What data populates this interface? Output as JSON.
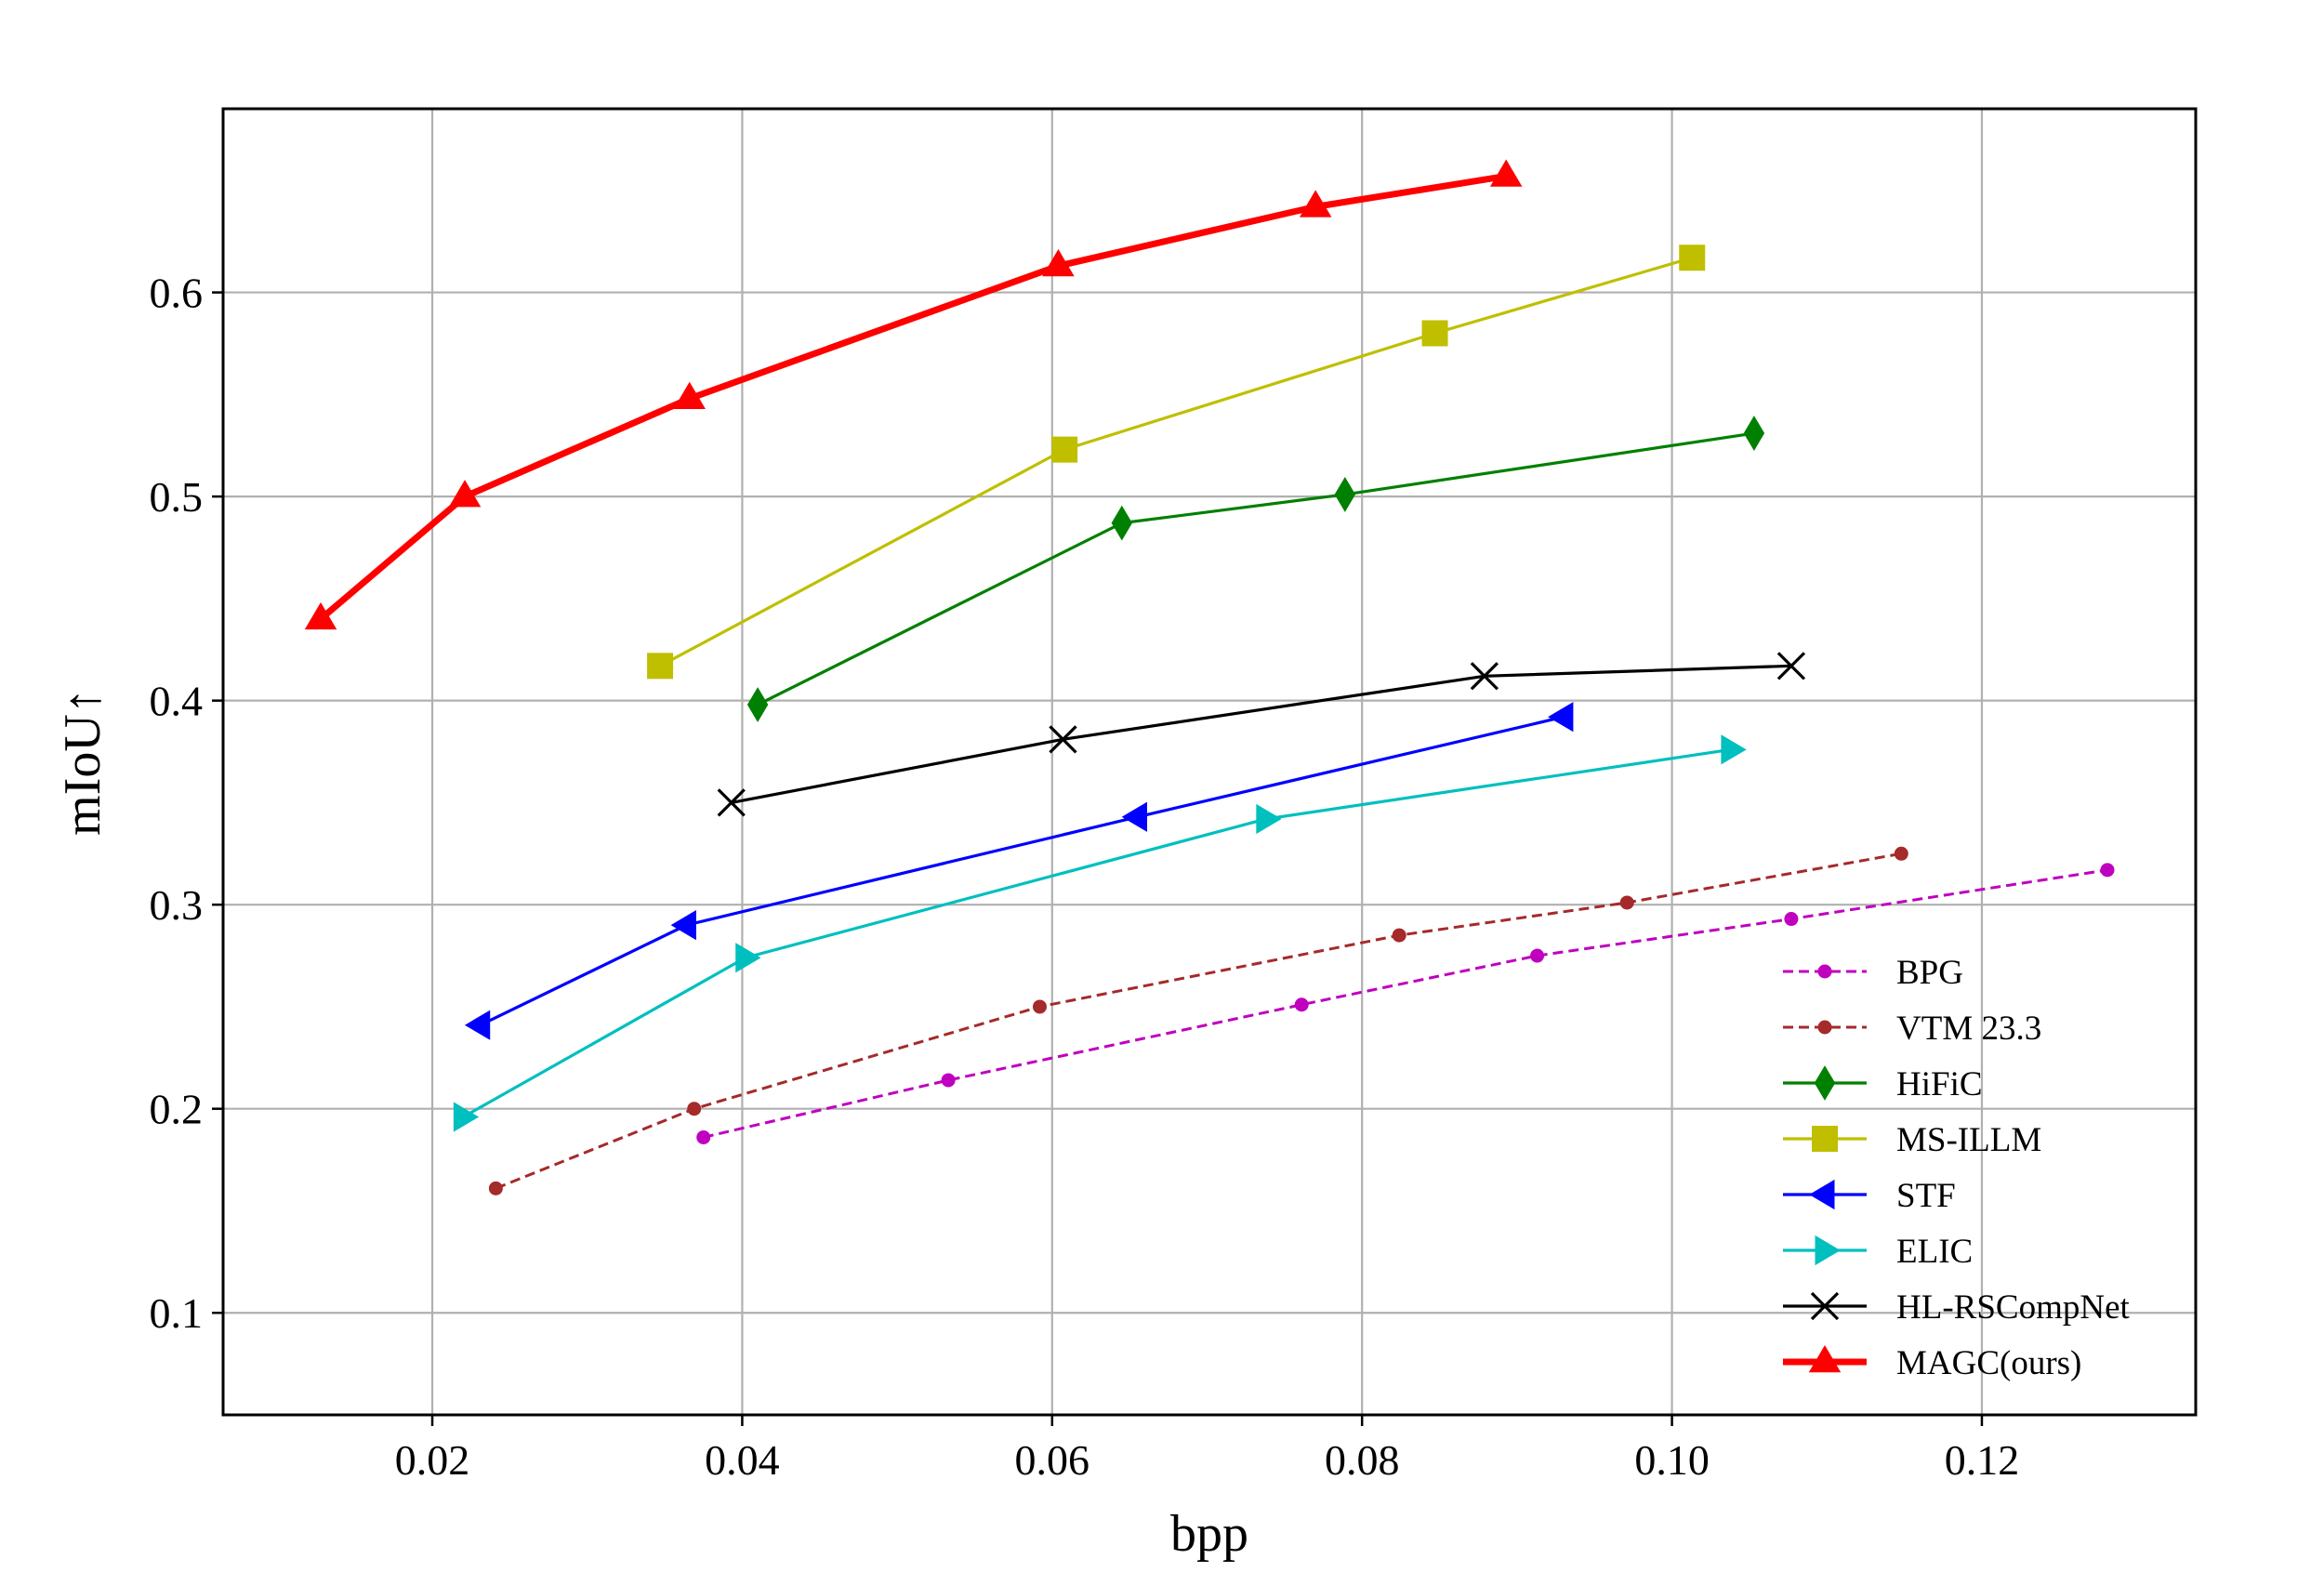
{
  "chart_data": {
    "type": "line",
    "title": "",
    "xlabel": "bpp",
    "ylabel": "mIoU↑",
    "xlim": [
      0.0065,
      0.1338
    ],
    "ylim": [
      0.05,
      0.69
    ],
    "xticks": [
      {
        "value": 0.02,
        "label": "0.02"
      },
      {
        "value": 0.04,
        "label": "0.04"
      },
      {
        "value": 0.06,
        "label": "0.06"
      },
      {
        "value": 0.08,
        "label": "0.08"
      },
      {
        "value": 0.1,
        "label": "0.10"
      },
      {
        "value": 0.12,
        "label": "0.12"
      }
    ],
    "yticks": [
      {
        "value": 0.1,
        "label": "0.1"
      },
      {
        "value": 0.2,
        "label": "0.2"
      },
      {
        "value": 0.3,
        "label": "0.3"
      },
      {
        "value": 0.4,
        "label": "0.4"
      },
      {
        "value": 0.5,
        "label": "0.5"
      },
      {
        "value": 0.6,
        "label": "0.6"
      }
    ],
    "grid": true,
    "legend_position": "lower-right",
    "series": [
      {
        "name": "BPG",
        "color": "#bf00bf",
        "line_style": "dashed",
        "marker": "circle",
        "line_width": "thin",
        "x": [
          0.0375,
          0.0533,
          0.0761,
          0.0913,
          0.1077,
          0.1281
        ],
        "y": [
          0.186,
          0.214,
          0.251,
          0.275,
          0.293,
          0.317
        ]
      },
      {
        "name": "VTM 23.3",
        "color": "#a52a2a",
        "line_style": "dashed",
        "marker": "circle",
        "line_width": "thin",
        "x": [
          0.0241,
          0.0369,
          0.0592,
          0.0824,
          0.0971,
          0.1148
        ],
        "y": [
          0.161,
          0.2,
          0.25,
          0.285,
          0.301,
          0.325
        ]
      },
      {
        "name": "HiFiC",
        "color": "#008000",
        "line_style": "solid",
        "marker": "thin_diamond",
        "line_width": "normal",
        "x": [
          0.041,
          0.0645,
          0.0789,
          0.1053
        ],
        "y": [
          0.398,
          0.487,
          0.501,
          0.531
        ]
      },
      {
        "name": "MS-ILLM",
        "color": "#bfbf00",
        "line_style": "solid",
        "marker": "square",
        "line_width": "normal",
        "x": [
          0.0347,
          0.0608,
          0.0847,
          0.1013
        ],
        "y": [
          0.417,
          0.523,
          0.58,
          0.617
        ]
      },
      {
        "name": "STF",
        "color": "#0000ff",
        "line_style": "solid",
        "marker": "triangle_left",
        "line_width": "normal",
        "x": [
          0.0231,
          0.0364,
          0.0655,
          0.093
        ],
        "y": [
          0.241,
          0.29,
          0.343,
          0.392
        ]
      },
      {
        "name": "ELIC",
        "color": "#00bfbf",
        "line_style": "solid",
        "marker": "triangle_right",
        "line_width": "normal",
        "x": [
          0.022,
          0.0402,
          0.0738,
          0.1038
        ],
        "y": [
          0.196,
          0.274,
          0.342,
          0.376
        ]
      },
      {
        "name": "HL-RSCompNet",
        "color": "#000000",
        "line_style": "solid",
        "marker": "x",
        "line_width": "normal",
        "x": [
          0.0393,
          0.0607,
          0.0879,
          0.1077
        ],
        "y": [
          0.35,
          0.381,
          0.412,
          0.417
        ]
      },
      {
        "name": "MAGC(ours)",
        "color": "#ff0000",
        "line_style": "solid",
        "marker": "triangle_up",
        "line_width": "thick",
        "x": [
          0.0128,
          0.0221,
          0.0366,
          0.0604,
          0.077,
          0.0893
        ],
        "y": [
          0.44,
          0.5,
          0.548,
          0.613,
          0.642,
          0.657
        ]
      }
    ]
  }
}
